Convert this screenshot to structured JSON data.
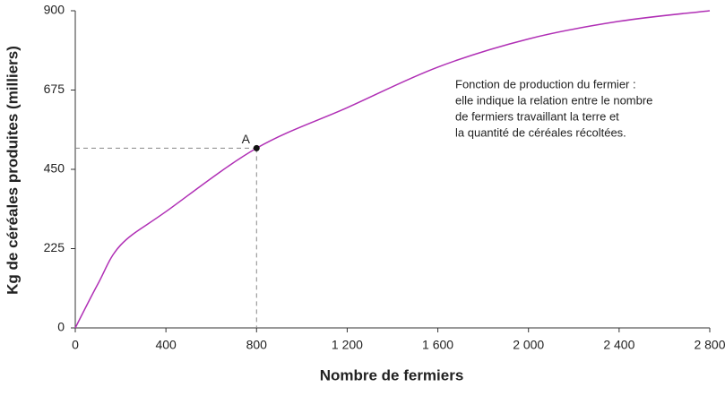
{
  "chart_data": {
    "type": "line",
    "xlabel": "Nombre de fermiers",
    "ylabel": "Kg de céréales produites (milliers)",
    "x": [
      0,
      100,
      200,
      400,
      800,
      1200,
      1600,
      2000,
      2400,
      2800
    ],
    "values": [
      0,
      125,
      235,
      330,
      510,
      625,
      740,
      820,
      870,
      900
    ],
    "color": "#b02fb5",
    "xlim": [
      0,
      2800
    ],
    "ylim": [
      0,
      900
    ],
    "xticks": [
      0,
      400,
      800,
      {
        "value": 1200,
        "label": "1 200"
      },
      {
        "value": 1600,
        "label": "1 600"
      },
      {
        "value": 2000,
        "label": "2 000"
      },
      {
        "value": 2400,
        "label": "2 400"
      },
      {
        "value": 2800,
        "label": "2 800"
      }
    ],
    "yticks": [
      0,
      225,
      450,
      675,
      900
    ],
    "point": {
      "label": "A",
      "x": 800,
      "y": 510
    },
    "annotation": [
      "Fonction de production du fermier :",
      "elle indique la relation entre le nombre",
      "de fermiers travaillant la terre et",
      "la quantité de céréales récoltées."
    ]
  }
}
